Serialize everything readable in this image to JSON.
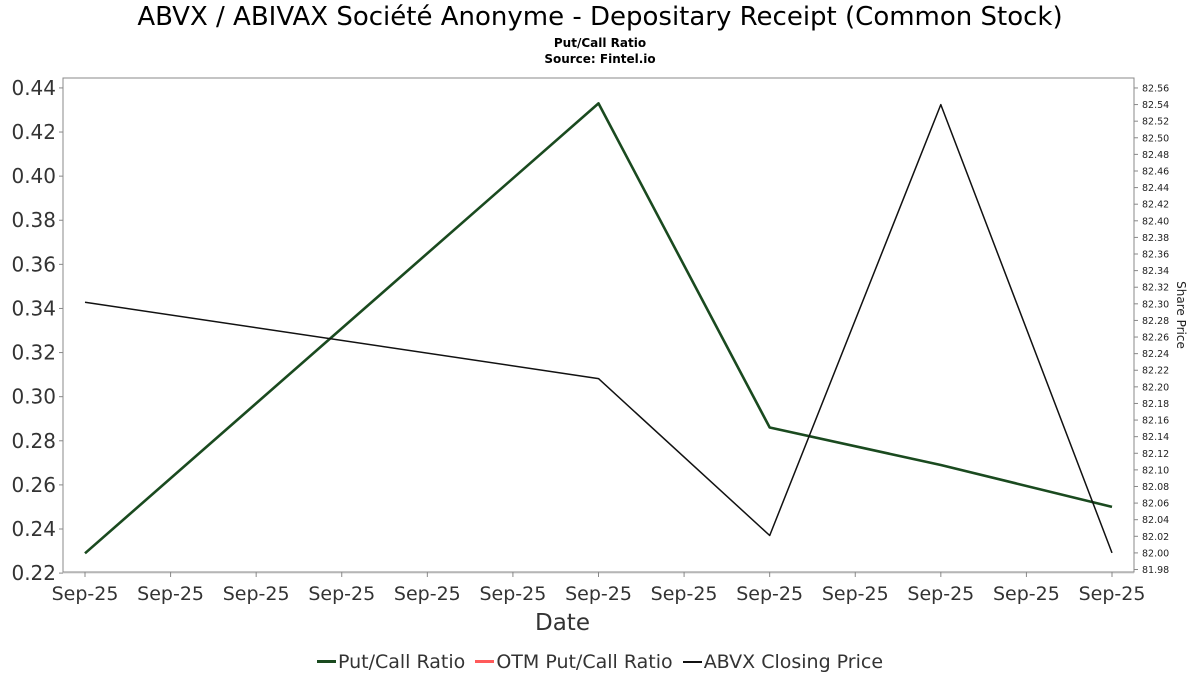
{
  "header": {
    "title": "ABVX / ABIVAX Société Anonyme - Depositary Receipt (Common Stock)",
    "subtitle": "Put/Call Ratio",
    "source": "Source: Fintel.io"
  },
  "colors": {
    "put_call": "#1a4a1f",
    "otm_put_call": "#ff5a5a",
    "closing_price": "#111111",
    "grid": "#dddddd",
    "axis": "#888888",
    "tick_text": "#333333"
  },
  "chart_data": {
    "type": "line",
    "xlabel": "Date",
    "ylabel_right": "Share Price",
    "x_tick_labels": [
      "Sep-25",
      "Sep-25",
      "Sep-25",
      "Sep-25",
      "Sep-25",
      "Sep-25",
      "Sep-25",
      "Sep-25",
      "Sep-25",
      "Sep-25",
      "Sep-25",
      "Sep-25",
      "Sep-25"
    ],
    "left_axis": {
      "ylim": [
        0.22,
        0.44
      ],
      "ticks": [
        "0.22",
        "0.24",
        "0.26",
        "0.28",
        "0.30",
        "0.32",
        "0.34",
        "0.36",
        "0.38",
        "0.40",
        "0.42",
        "0.44"
      ]
    },
    "right_axis": {
      "ylim": [
        81.98,
        82.56
      ],
      "ticks": [
        "81.98",
        "82.00",
        "82.02",
        "82.04",
        "82.06",
        "82.08",
        "82.10",
        "82.12",
        "82.14",
        "82.16",
        "82.18",
        "82.20",
        "82.22",
        "82.24",
        "82.26",
        "82.28",
        "82.30",
        "82.32",
        "82.34",
        "82.36",
        "82.38",
        "82.40",
        "82.42",
        "82.44",
        "82.46",
        "82.48",
        "82.50",
        "82.52",
        "82.54",
        "82.56"
      ]
    },
    "grid": true,
    "legend_position": "bottom-center",
    "series": [
      {
        "name": "Put/Call Ratio",
        "axis": "left",
        "color_key": "put_call",
        "points": [
          [
            0,
            0.229
          ],
          [
            6,
            0.433
          ],
          [
            8,
            0.286
          ],
          [
            10,
            0.269
          ],
          [
            12,
            0.25
          ]
        ]
      },
      {
        "name": "OTM Put/Call Ratio",
        "axis": "left",
        "color_key": "otm_put_call",
        "points": []
      },
      {
        "name": "ABVX Closing Price",
        "axis": "right",
        "color_key": "closing_price",
        "points": [
          [
            0,
            82.302
          ],
          [
            6,
            82.21
          ],
          [
            8,
            82.021
          ],
          [
            10,
            82.54
          ],
          [
            12,
            82.0
          ]
        ]
      }
    ]
  }
}
